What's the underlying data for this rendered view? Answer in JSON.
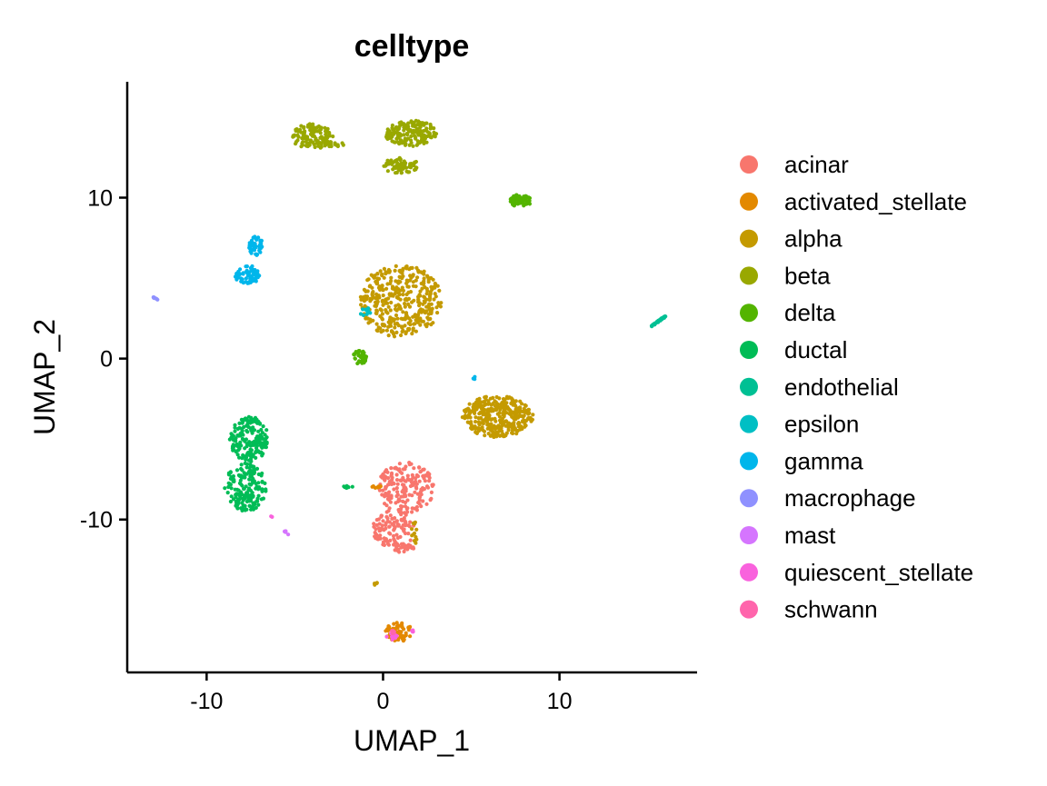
{
  "chart_data": {
    "type": "scatter",
    "title": "celltype",
    "xlabel": "UMAP_1",
    "ylabel": "UMAP_2",
    "xlim": [
      -14.5,
      17.8
    ],
    "ylim": [
      -19.5,
      17.2
    ],
    "x_ticks": [
      {
        "value": -10,
        "label": "-10"
      },
      {
        "value": 0,
        "label": "0"
      },
      {
        "value": 10,
        "label": "10"
      }
    ],
    "y_ticks": [
      {
        "value": 10,
        "label": "10"
      },
      {
        "value": 0,
        "label": "0"
      },
      {
        "value": -10,
        "label": "-10"
      }
    ],
    "grid": false,
    "legend_position": "right",
    "series": [
      {
        "name": "acinar",
        "color": "#F8766D",
        "clusters": [
          {
            "cx": 1.3,
            "cy": -8.0,
            "rx": 1.6,
            "ry": 1.6,
            "n": 190,
            "seed": 11
          },
          {
            "cx": 0.6,
            "cy": -10.6,
            "rx": 1.2,
            "ry": 1.2,
            "n": 100,
            "seed": 12
          },
          {
            "cx": 1.2,
            "cy": -11.8,
            "rx": 0.6,
            "ry": 0.3,
            "n": 30,
            "seed": 13
          }
        ]
      },
      {
        "name": "activated_stellate",
        "color": "#E38900",
        "clusters": [
          {
            "cx": 0.9,
            "cy": -17.0,
            "rx": 0.8,
            "ry": 0.6,
            "n": 60,
            "seed": 21
          },
          {
            "cx": -0.3,
            "cy": -8.0,
            "rx": 0.4,
            "ry": 0.1,
            "n": 8,
            "seed": 22
          }
        ]
      },
      {
        "name": "alpha",
        "color": "#C49A00",
        "clusters": [
          {
            "cx": 1.0,
            "cy": 3.6,
            "rx": 2.3,
            "ry": 2.3,
            "n": 380,
            "seed": 31
          },
          {
            "cx": 6.5,
            "cy": -3.6,
            "rx": 2.0,
            "ry": 1.3,
            "n": 340,
            "seed": 32
          },
          {
            "cx": 1.8,
            "cy": -10.8,
            "rx": 0.2,
            "ry": 0.7,
            "n": 12,
            "seed": 33
          },
          {
            "cx": -0.4,
            "cy": -14.0,
            "rx": 0.1,
            "ry": 0.1,
            "n": 4,
            "seed": 34
          }
        ]
      },
      {
        "name": "beta",
        "color": "#99A800",
        "clusters": [
          {
            "cx": -4.0,
            "cy": 13.8,
            "rx": 1.2,
            "ry": 0.8,
            "n": 120,
            "seed": 41
          },
          {
            "cx": 1.6,
            "cy": 14.0,
            "rx": 1.5,
            "ry": 0.8,
            "n": 160,
            "seed": 42
          },
          {
            "cx": 1.0,
            "cy": 12.0,
            "rx": 1.0,
            "ry": 0.5,
            "n": 60,
            "seed": 43
          },
          {
            "cx": -2.7,
            "cy": 13.3,
            "rx": 0.5,
            "ry": 0.2,
            "n": 20,
            "seed": 44
          }
        ]
      },
      {
        "name": "delta",
        "color": "#53B400",
        "clusters": [
          {
            "cx": 7.8,
            "cy": 9.8,
            "rx": 0.6,
            "ry": 0.4,
            "n": 70,
            "seed": 51
          },
          {
            "cx": -1.3,
            "cy": 0.1,
            "rx": 0.4,
            "ry": 0.5,
            "n": 40,
            "seed": 52
          }
        ]
      },
      {
        "name": "ductal",
        "color": "#00BC56",
        "clusters": [
          {
            "cx": -7.6,
            "cy": -5.0,
            "rx": 1.1,
            "ry": 1.4,
            "n": 170,
            "seed": 61
          },
          {
            "cx": -7.8,
            "cy": -8.0,
            "rx": 1.2,
            "ry": 1.5,
            "n": 170,
            "seed": 62
          },
          {
            "cx": -2.0,
            "cy": -8.0,
            "rx": 0.3,
            "ry": 0.1,
            "n": 8,
            "seed": 63
          }
        ]
      },
      {
        "name": "endothelial",
        "color": "#00C094",
        "clusters": [
          {
            "line": [
              15.2,
              2.0,
              16.1,
              2.7
            ],
            "n": 40,
            "seed": 71
          }
        ]
      },
      {
        "name": "epsilon",
        "color": "#00BFC4",
        "clusters": [
          {
            "cx": -1.0,
            "cy": 2.9,
            "rx": 0.3,
            "ry": 0.3,
            "n": 12,
            "seed": 81
          }
        ]
      },
      {
        "name": "gamma",
        "color": "#00B6EB",
        "clusters": [
          {
            "cx": -7.2,
            "cy": 7.0,
            "rx": 0.4,
            "ry": 0.6,
            "n": 50,
            "seed": 91
          },
          {
            "cx": -7.7,
            "cy": 5.2,
            "rx": 0.7,
            "ry": 0.6,
            "n": 70,
            "seed": 92
          },
          {
            "cx": 5.2,
            "cy": -1.2,
            "rx": 0.1,
            "ry": 0.1,
            "n": 3,
            "seed": 93
          }
        ]
      },
      {
        "name": "macrophage",
        "color": "#8F91FF",
        "clusters": [
          {
            "line": [
              -13.0,
              3.8,
              -12.7,
              3.6
            ],
            "n": 8,
            "seed": 101
          }
        ]
      },
      {
        "name": "mast",
        "color": "#D575FE",
        "clusters": [
          {
            "line": [
              -5.7,
              -10.6,
              -5.4,
              -10.9
            ],
            "n": 6,
            "seed": 111
          }
        ]
      },
      {
        "name": "quiescent_stellate",
        "color": "#F962DD",
        "clusters": [
          {
            "cx": 0.5,
            "cy": -17.3,
            "rx": 0.3,
            "ry": 0.3,
            "n": 10,
            "seed": 121
          },
          {
            "cx": 1.7,
            "cy": -16.9,
            "rx": 0.2,
            "ry": 0.1,
            "n": 5,
            "seed": 122
          },
          {
            "cx": -6.3,
            "cy": -9.8,
            "rx": 0.1,
            "ry": 0.1,
            "n": 2,
            "seed": 123
          }
        ]
      },
      {
        "name": "schwann",
        "color": "#FF65AC",
        "clusters": [
          {
            "cx": 0.5,
            "cy": -17.1,
            "rx": 0.2,
            "ry": 0.2,
            "n": 5,
            "seed": 131
          }
        ]
      }
    ]
  }
}
